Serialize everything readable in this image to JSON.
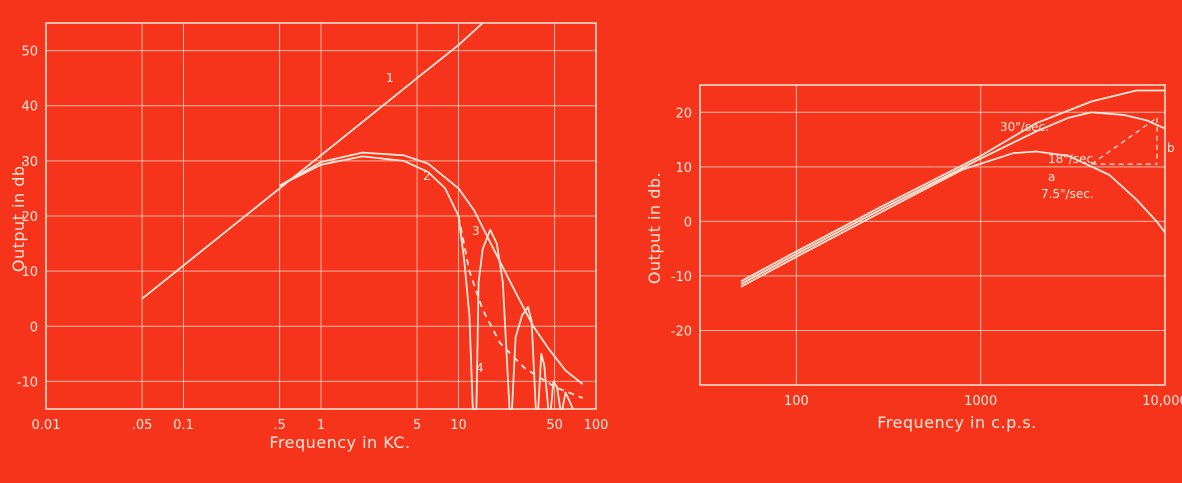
{
  "palette": {
    "background": "#f5341b",
    "ink": "#fde7d8",
    "grid": "#fbb7a3"
  },
  "chart_data": [
    {
      "type": "line",
      "xlabel": "Frequency in KC.",
      "ylabel": "Output in db.",
      "x_scale": "log",
      "xlim": [
        0.01,
        100
      ],
      "ylim": [
        -15,
        55
      ],
      "grid": true,
      "x_tick_labels": [
        {
          "v": 0.01,
          "label": "0.01"
        },
        {
          "v": 0.05,
          "label": ".05"
        },
        {
          "v": 0.1,
          "label": "0.1"
        },
        {
          "v": 0.5,
          "label": ".5"
        },
        {
          "v": 1,
          "label": "1"
        },
        {
          "v": 5,
          "label": "5"
        },
        {
          "v": 10,
          "label": "10"
        },
        {
          "v": 50,
          "label": "50"
        },
        {
          "v": 100,
          "label": "100"
        }
      ],
      "y_ticks": [
        -10,
        0,
        10,
        20,
        30,
        40,
        50
      ],
      "series": [
        {
          "name": "1",
          "style": "solid",
          "points": [
            [
              0.05,
              5
            ],
            [
              0.5,
              25
            ],
            [
              1,
              31
            ],
            [
              5,
              45
            ],
            [
              10,
              51
            ],
            [
              15,
              55
            ]
          ]
        },
        {
          "name": "2",
          "style": "solid",
          "points": [
            [
              0.5,
              25.5
            ],
            [
              1,
              29.8
            ],
            [
              2,
              31.5
            ],
            [
              4,
              31
            ],
            [
              6,
              29.5
            ],
            [
              10,
              25
            ],
            [
              13,
              21
            ],
            [
              18,
              14
            ],
            [
              25,
              7
            ],
            [
              35,
              0
            ],
            [
              45,
              -4
            ],
            [
              60,
              -8
            ],
            [
              80,
              -10.5
            ]
          ]
        },
        {
          "name": "3",
          "style": "solid",
          "points": [
            [
              0.5,
              25.5
            ],
            [
              1,
              29.3
            ],
            [
              2,
              30.8
            ],
            [
              4,
              30
            ],
            [
              6,
              28
            ],
            [
              8,
              25
            ],
            [
              10,
              20
            ],
            [
              11,
              12
            ],
            [
              12,
              2
            ],
            [
              12.7,
              -15
            ],
            [
              13.5,
              -15
            ],
            [
              14,
              8
            ],
            [
              15,
              14
            ],
            [
              17,
              17.5
            ],
            [
              19,
              15
            ],
            [
              21,
              8
            ],
            [
              23.5,
              -15
            ],
            [
              24.5,
              -15
            ],
            [
              26,
              -2
            ],
            [
              29,
              2
            ],
            [
              32,
              3.5
            ],
            [
              34,
              1
            ],
            [
              36.5,
              -15
            ],
            [
              38,
              -15
            ],
            [
              40,
              -5
            ],
            [
              42,
              -7
            ],
            [
              45,
              -15
            ],
            [
              47,
              -15
            ],
            [
              49,
              -10
            ],
            [
              52,
              -11
            ],
            [
              55,
              -15
            ],
            [
              57,
              -15
            ],
            [
              60,
              -12
            ],
            [
              64,
              -13.5
            ],
            [
              68,
              -15
            ]
          ]
        },
        {
          "name": "4",
          "style": "dashed",
          "points": [
            [
              10,
              20
            ],
            [
              12,
              10
            ],
            [
              15,
              3
            ],
            [
              20,
              -3
            ],
            [
              30,
              -7.5
            ],
            [
              50,
              -11
            ],
            [
              80,
              -13
            ]
          ]
        }
      ]
    },
    {
      "type": "line",
      "xlabel": "Frequency in c.p.s.",
      "ylabel": "Output in db.",
      "x_scale": "log",
      "xlim": [
        30,
        10000
      ],
      "ylim": [
        -30,
        25
      ],
      "grid": true,
      "x_tick_labels": [
        {
          "v": 100,
          "label": "100"
        },
        {
          "v": 1000,
          "label": "1000"
        },
        {
          "v": 10000,
          "label": "10,000"
        }
      ],
      "y_ticks": [
        -20,
        -10,
        0,
        10,
        20
      ],
      "series": [
        {
          "name": "30\"/sec.",
          "style": "solid",
          "points": [
            [
              50,
              -11
            ],
            [
              100,
              -5.5
            ],
            [
              300,
              3
            ],
            [
              1000,
              12
            ],
            [
              2000,
              18
            ],
            [
              4000,
              22
            ],
            [
              7000,
              24
            ],
            [
              10000,
              24
            ]
          ]
        },
        {
          "name": "18\"/sec.",
          "style": "solid",
          "points": [
            [
              50,
              -11.5
            ],
            [
              100,
              -6
            ],
            [
              300,
              2.5
            ],
            [
              1000,
              11.5
            ],
            [
              2000,
              16.5
            ],
            [
              3000,
              19
            ],
            [
              4000,
              20
            ],
            [
              6000,
              19.5
            ],
            [
              8000,
              18.5
            ],
            [
              10000,
              17
            ]
          ]
        },
        {
          "name": "7.5\"/sec.",
          "style": "solid",
          "points": [
            [
              50,
              -12
            ],
            [
              100,
              -6.5
            ],
            [
              300,
              2
            ],
            [
              800,
              9.5
            ],
            [
              1500,
              12.5
            ],
            [
              2000,
              12.8
            ],
            [
              3000,
              12
            ],
            [
              5000,
              8.5
            ],
            [
              7000,
              4
            ],
            [
              9000,
              0
            ],
            [
              10000,
              -2
            ]
          ]
        }
      ],
      "annotations": [
        {
          "label": "a",
          "x": 4000,
          "y": 12.5
        },
        {
          "label": "b",
          "x": 10500,
          "y": 19
        }
      ]
    }
  ]
}
